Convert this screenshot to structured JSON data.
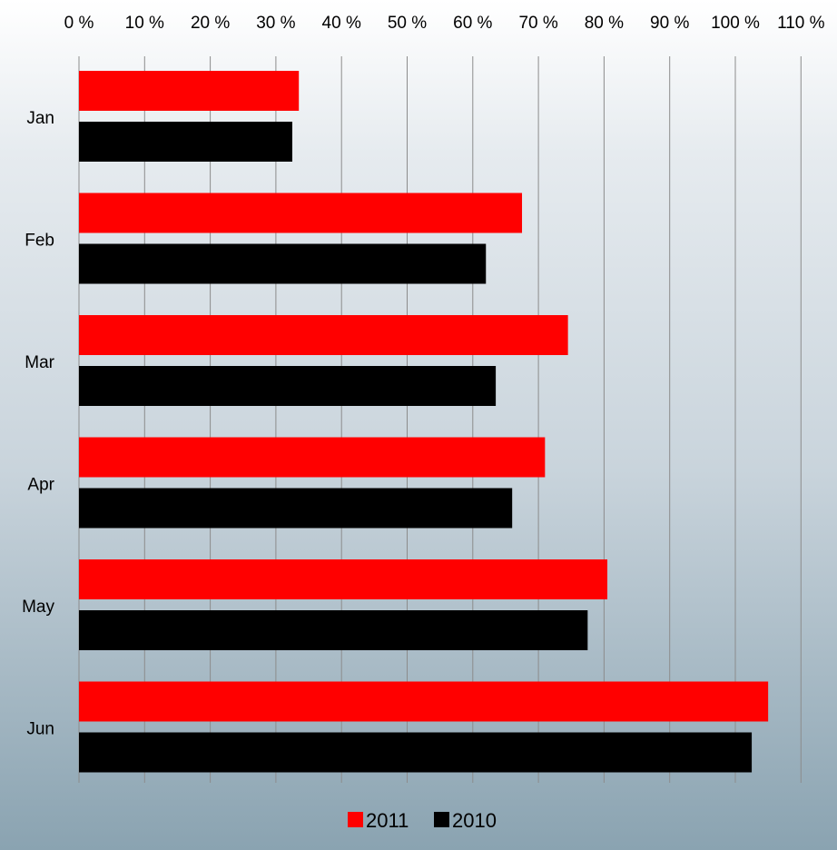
{
  "chart_data": {
    "type": "bar",
    "orientation": "horizontal",
    "categories": [
      "Jan",
      "Feb",
      "Mar",
      "Apr",
      "May",
      "Jun"
    ],
    "series": [
      {
        "name": "2011",
        "color": "#ff0000",
        "values": [
          33.5,
          67.5,
          74.5,
          71,
          80.5,
          105
        ]
      },
      {
        "name": "2010",
        "color": "#000000",
        "values": [
          32.5,
          62,
          63.5,
          66,
          77.5,
          102.5
        ]
      }
    ],
    "x_ticks": [
      "0 %",
      "10 %",
      "20 %",
      "30 %",
      "40 %",
      "50 %",
      "60 %",
      "70 %",
      "80 %",
      "90 %",
      "100 %",
      "110 %"
    ],
    "xlim": [
      0,
      110
    ],
    "x_axis_position": "top",
    "grid": "vertical",
    "legend": "bottom-center",
    "title": "",
    "xlabel": "",
    "ylabel": ""
  }
}
